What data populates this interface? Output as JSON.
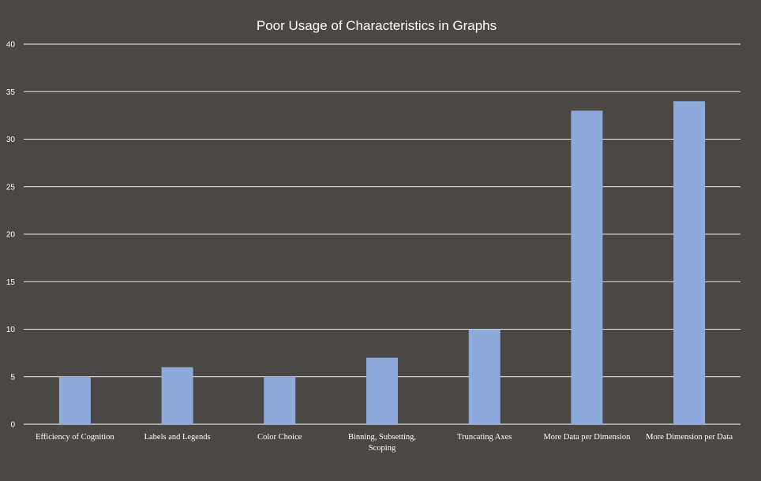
{
  "chart_data": {
    "type": "bar",
    "title": "Poor Usage of Characteristics in Graphs",
    "xlabel": "",
    "ylabel": "",
    "categories": [
      "Efficiency of Cognition",
      "Labels and Legends",
      "Color Choice",
      "Binning, Subsetting, Scoping",
      "Truncating Axes",
      "More Data per Dimension",
      "More Dimension per Data"
    ],
    "category_lines": [
      [
        "Efficiency of Cognition"
      ],
      [
        "Labels and Legends"
      ],
      [
        "Color Choice"
      ],
      [
        "Binning, Subsetting,",
        "Scoping"
      ],
      [
        "Truncating Axes"
      ],
      [
        "More Data per Dimension"
      ],
      [
        "More Dimension per Data"
      ]
    ],
    "values": [
      5,
      6,
      5,
      7,
      10,
      33,
      34
    ],
    "ylim": [
      0,
      40
    ],
    "yticks": [
      "0",
      "5",
      "10",
      "15",
      "20",
      "25",
      "30",
      "35",
      "40"
    ],
    "grid": true,
    "legend": "none",
    "colors": {
      "background": "#4b4744",
      "bar": "#8eaadb",
      "text": "#ffffff",
      "grid": "#f2f2f2"
    }
  }
}
